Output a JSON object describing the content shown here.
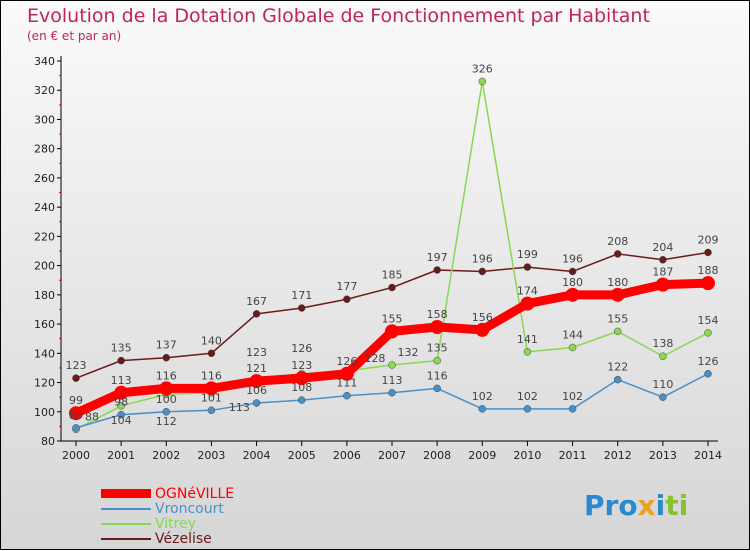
{
  "chart_data": {
    "type": "line",
    "title": "Evolution de la Dotation Globale de Fonctionnement par Habitant",
    "subtitle": "(en € et par an)",
    "x": [
      2000,
      2001,
      2002,
      2003,
      2004,
      2005,
      2006,
      2007,
      2008,
      2009,
      2010,
      2011,
      2012,
      2013,
      2014
    ],
    "ylim": [
      80,
      340
    ],
    "yticks": [
      80,
      100,
      120,
      140,
      160,
      180,
      200,
      220,
      240,
      260,
      280,
      300,
      320,
      340
    ],
    "series": [
      {
        "name": "OGNéVILLE",
        "color": "#ff0000",
        "values": [
          99,
          113,
          116,
          116,
          121,
          123,
          126,
          155,
          158,
          156,
          174,
          180,
          180,
          187,
          188
        ]
      },
      {
        "name": "Vroncourt",
        "color": "#4a90c8",
        "values": [
          89,
          98,
          100,
          101,
          106,
          108,
          111,
          113,
          116,
          102,
          102,
          102,
          122,
          110,
          126
        ]
      },
      {
        "name": "Vitrey",
        "color": "#88d850",
        "values": [
          88,
          104,
          112,
          113,
          123,
          126,
          128,
          132,
          135,
          326,
          141,
          144,
          155,
          138,
          154
        ]
      },
      {
        "name": "Vézelise",
        "color": "#6b1a1a",
        "values": [
          123,
          135,
          137,
          140,
          167,
          171,
          177,
          185,
          197,
          196,
          199,
          196,
          208,
          204,
          209
        ]
      }
    ],
    "legend": "bottom-left"
  },
  "logo": "Proxiti"
}
